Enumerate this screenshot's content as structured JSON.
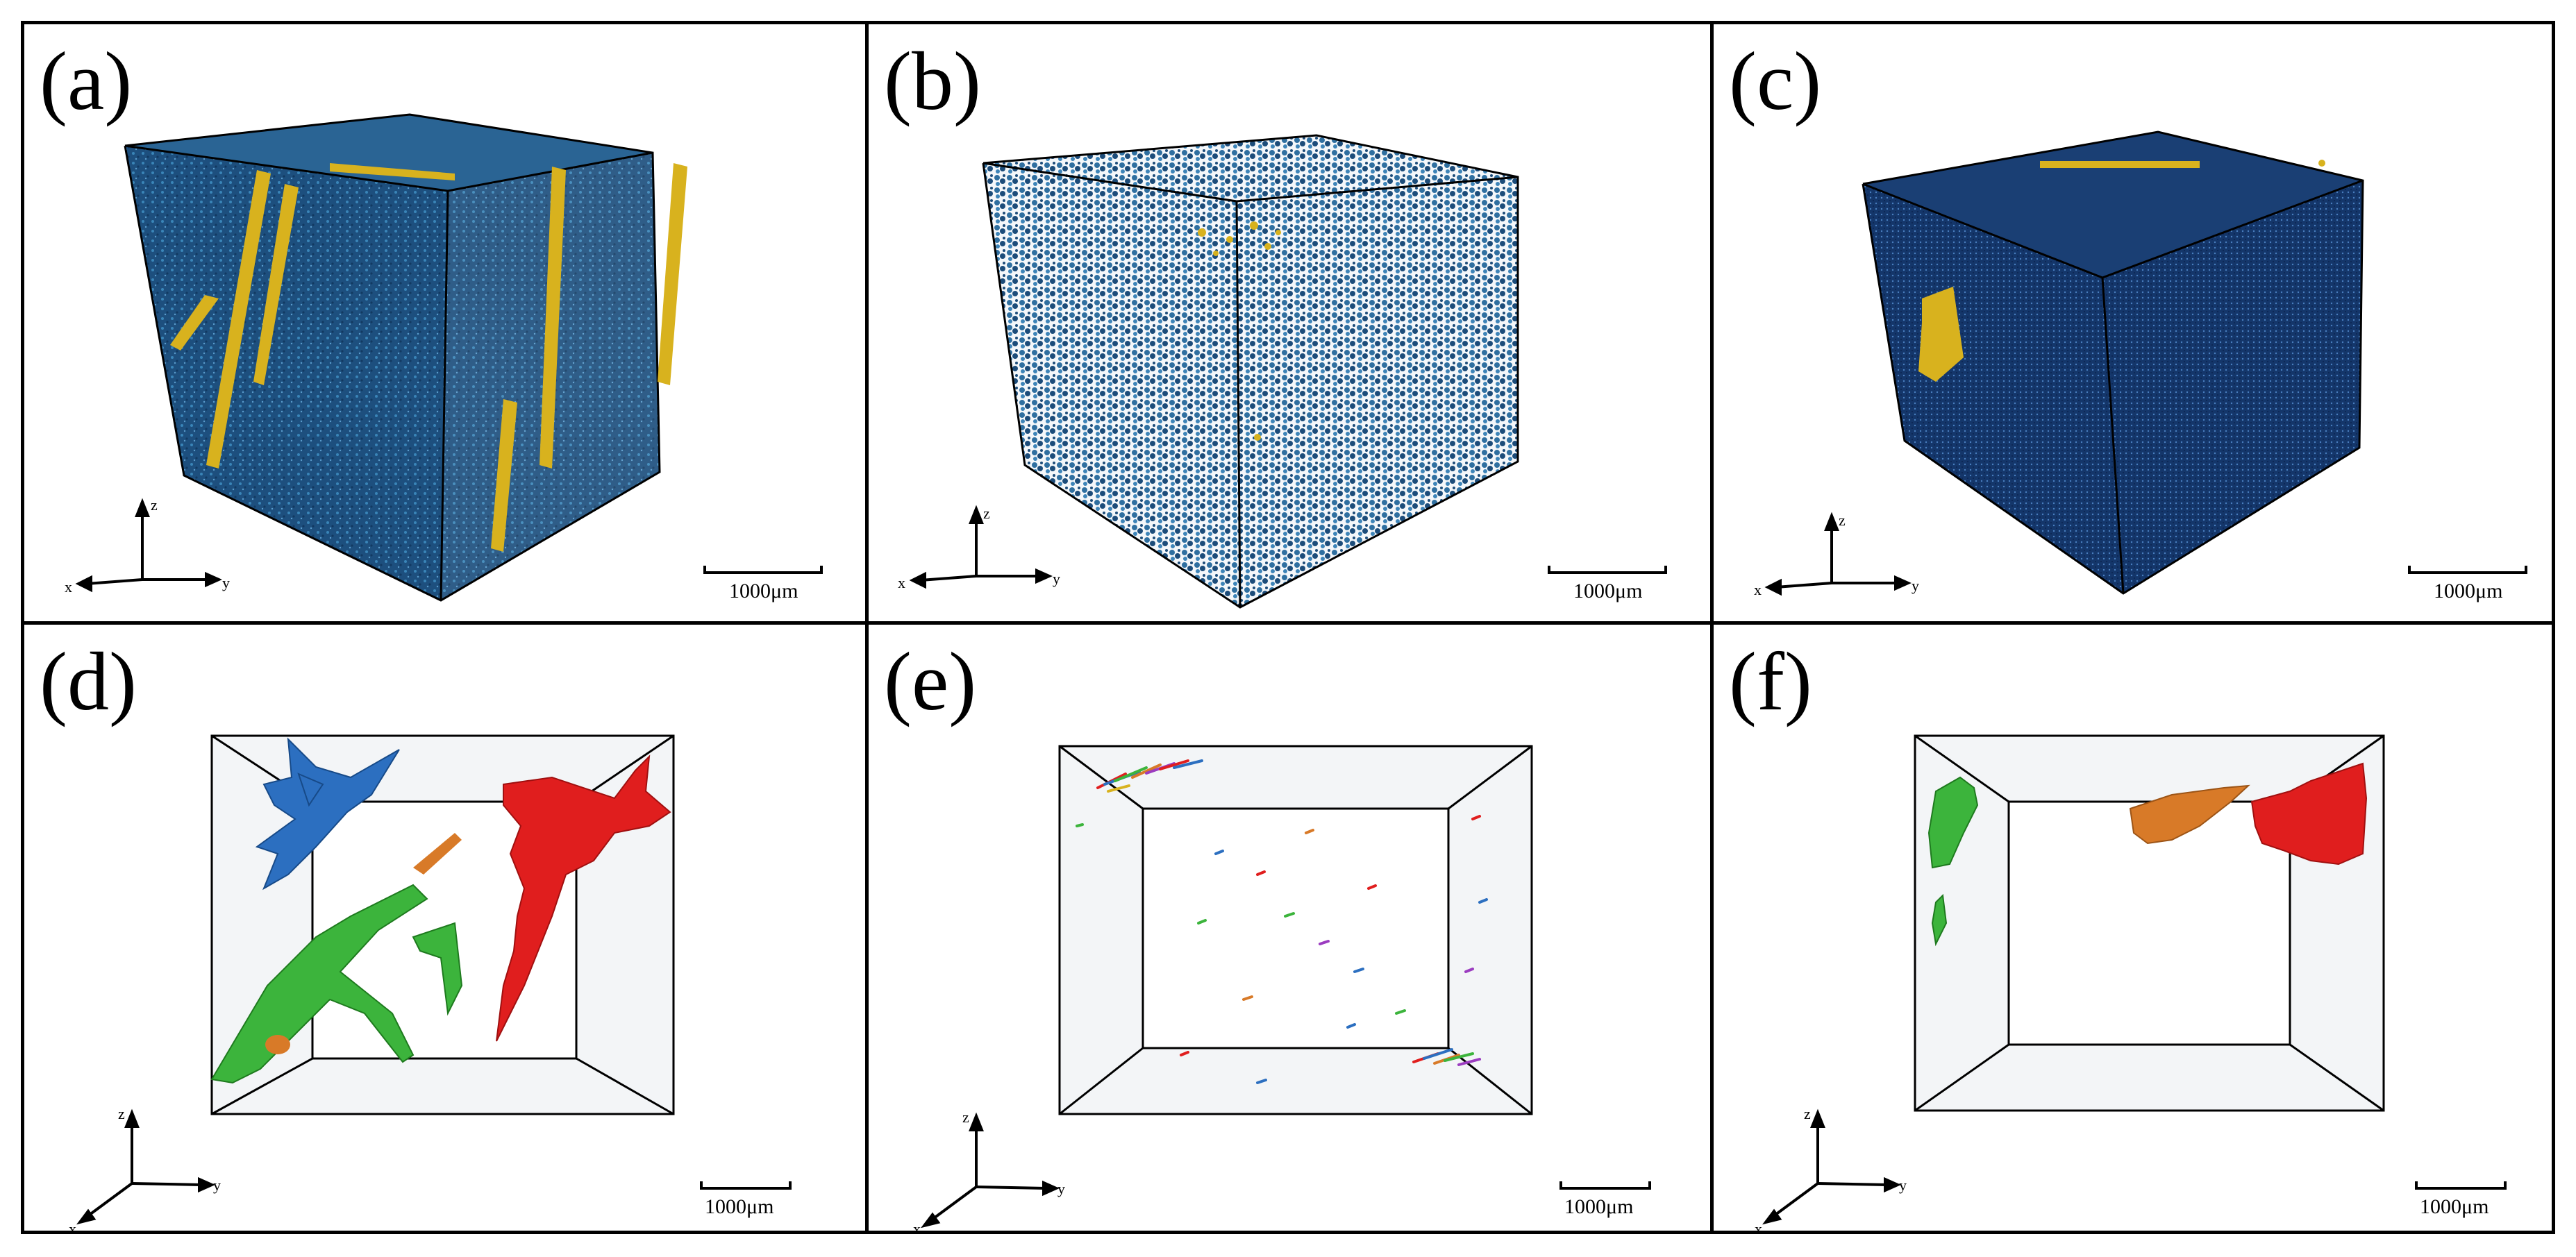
{
  "panels": [
    {
      "id": "a",
      "label": "(a)",
      "scale_label": "1000μm",
      "axes": {
        "x": "x",
        "y": "y",
        "z": "z"
      }
    },
    {
      "id": "b",
      "label": "(b)",
      "scale_label": "1000μm",
      "axes": {
        "x": "x",
        "y": "y",
        "z": "z"
      }
    },
    {
      "id": "c",
      "label": "(c)",
      "scale_label": "1000μm",
      "axes": {
        "x": "x",
        "y": "y",
        "z": "z"
      }
    },
    {
      "id": "d",
      "label": "(d)",
      "scale_label": "1000μm",
      "axes": {
        "x": "x",
        "y": "y",
        "z": "z"
      }
    },
    {
      "id": "e",
      "label": "(e)",
      "scale_label": "1000μm",
      "axes": {
        "x": "x",
        "y": "y",
        "z": "z"
      }
    },
    {
      "id": "f",
      "label": "(f)",
      "scale_label": "1000μm",
      "axes": {
        "x": "x",
        "y": "y",
        "z": "z"
      }
    }
  ],
  "colors": {
    "blue_dark": "#0f3a6a",
    "blue_mid": "#2f6fa0",
    "yellow": "#d8b21e",
    "red": "#e01e1e",
    "green": "#3cb43c",
    "orange": "#d87a28",
    "blue_crack": "#2c6fc0"
  }
}
